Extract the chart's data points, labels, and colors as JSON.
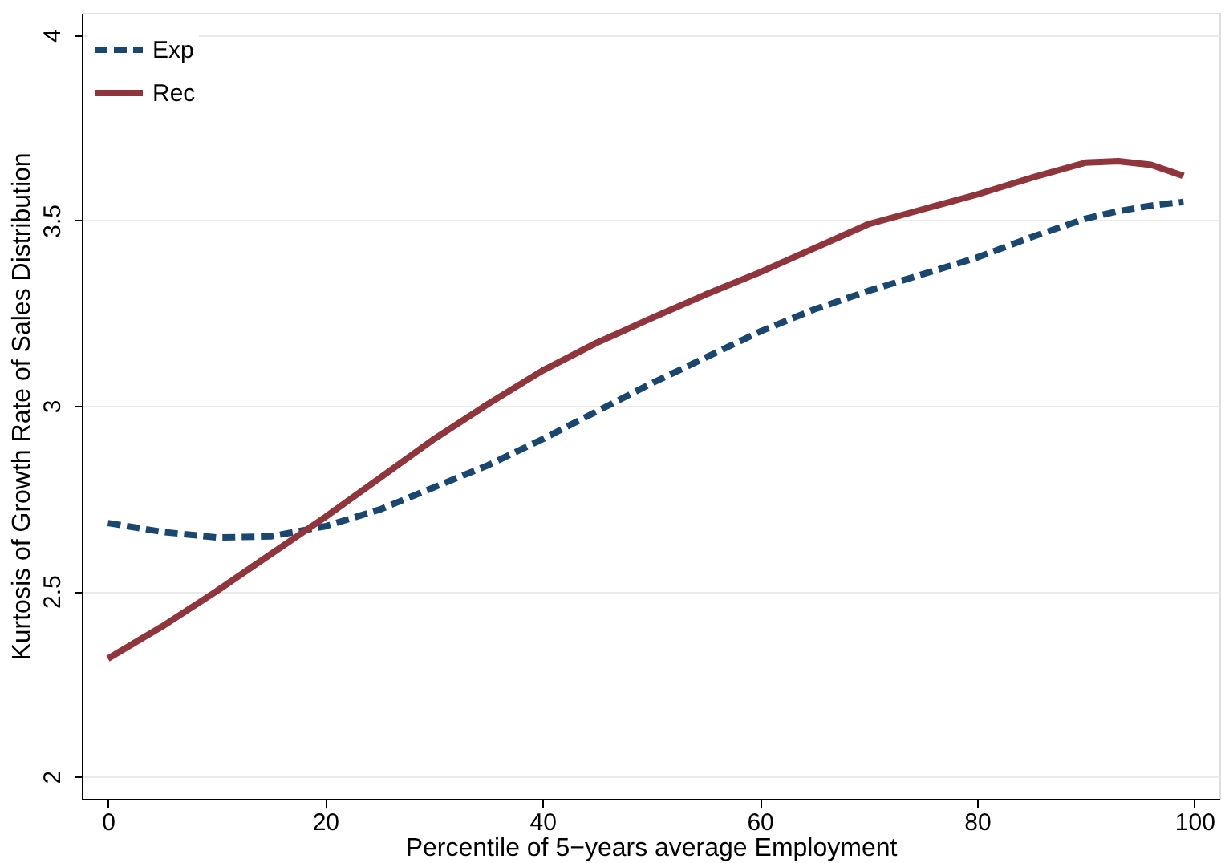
{
  "chart_data": {
    "type": "line",
    "xlabel": "Percentile of 5−years average Employment",
    "ylabel": "Kurtosis of Growth Rate of Sales Distribution",
    "x": [
      0,
      5,
      10,
      15,
      20,
      25,
      30,
      35,
      40,
      45,
      50,
      55,
      60,
      65,
      70,
      75,
      80,
      85,
      90,
      93,
      96,
      99
    ],
    "xlim": [
      -2.4,
      102.3
    ],
    "ylim": [
      1.94,
      4.06
    ],
    "xticks": [
      0,
      20,
      40,
      60,
      80,
      100
    ],
    "yticks": [
      2,
      2.5,
      3,
      3.5,
      4
    ],
    "grid": "y",
    "legend": "top left",
    "series": [
      {
        "name": "Exp",
        "color": "#1a476f",
        "line_style": "dashed",
        "values": [
          2.684,
          2.66,
          2.645,
          2.648,
          2.675,
          2.72,
          2.78,
          2.84,
          2.91,
          2.985,
          3.06,
          3.13,
          3.2,
          3.26,
          3.31,
          3.355,
          3.4,
          3.455,
          3.505,
          3.525,
          3.54,
          3.55
        ]
      },
      {
        "name": "Rec",
        "color": "#90353b",
        "line_style": "solid",
        "values": [
          2.318,
          2.405,
          2.5,
          2.6,
          2.7,
          2.805,
          2.91,
          3.005,
          3.095,
          3.17,
          3.236,
          3.3,
          3.36,
          3.425,
          3.49,
          3.53,
          3.57,
          3.615,
          3.656,
          3.66,
          3.65,
          3.62
        ]
      }
    ]
  }
}
